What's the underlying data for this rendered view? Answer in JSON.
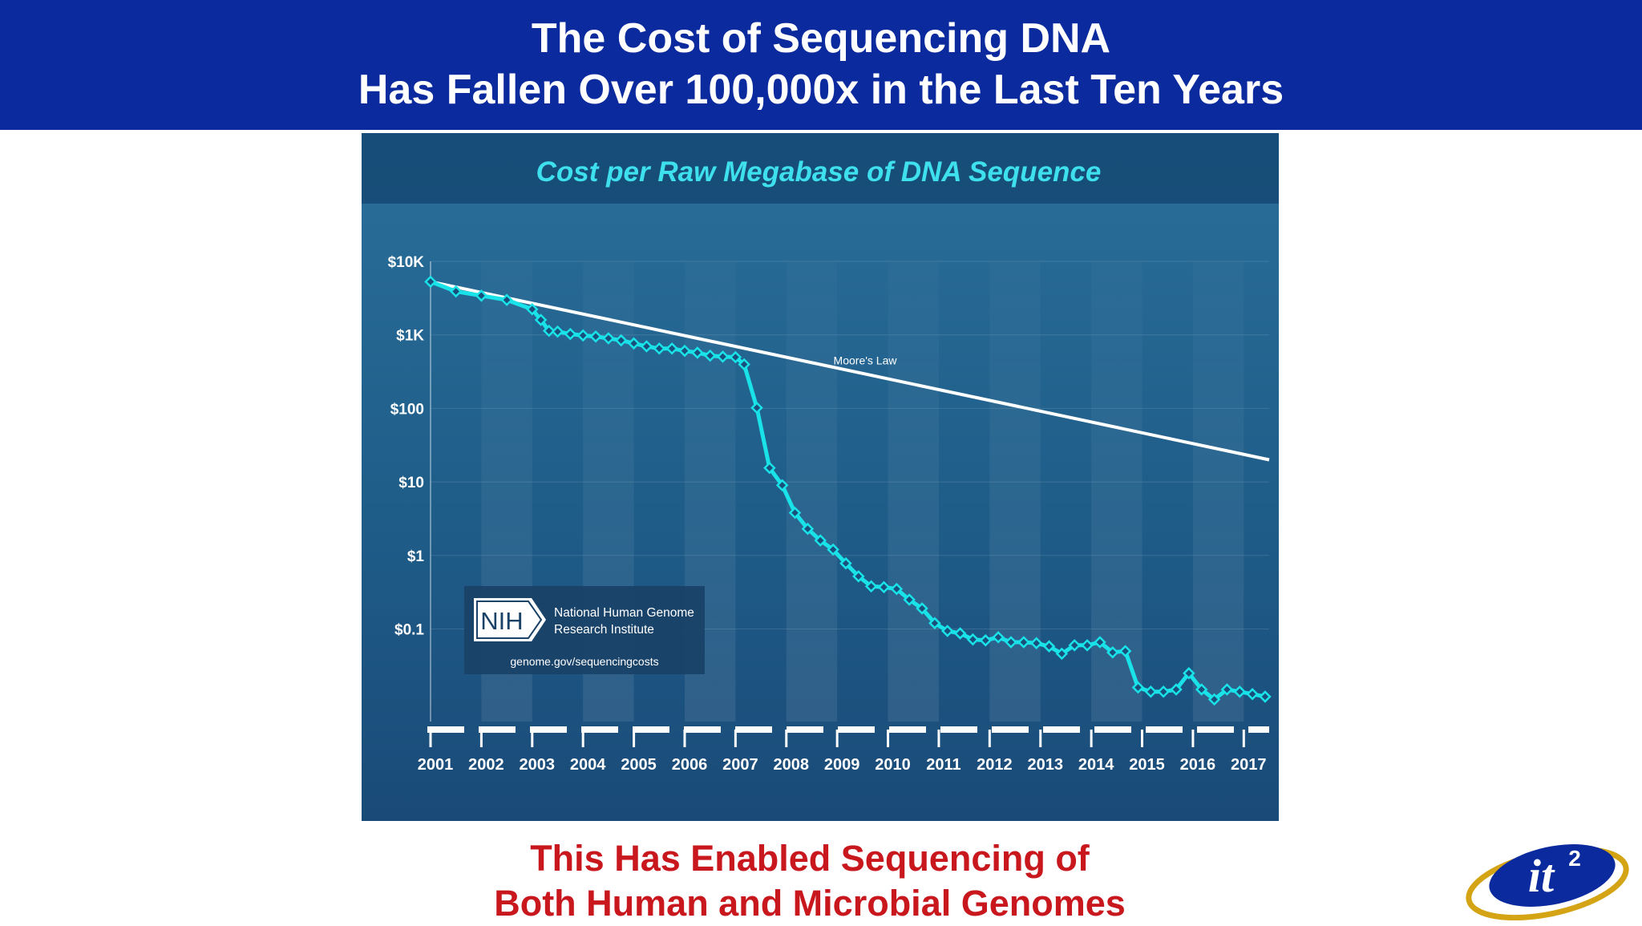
{
  "header": {
    "title_line1": "The Cost of Sequencing DNA",
    "title_line2": "Has Fallen Over 100,000x in the Last Ten Years"
  },
  "footer": {
    "line1": "This Has Enabled Sequencing of",
    "line2": "Both Human and Microbial Genomes"
  },
  "logo": {
    "text": "it",
    "superscript": "2"
  },
  "nih_badge": {
    "acronym": "NIH",
    "name_line1": "National Human Genome",
    "name_line2": "Research Institute",
    "url": "genome.gov/sequencingcosts"
  },
  "colors": {
    "header_bg": "#0b2a9e",
    "footer_text": "#c8171d",
    "chart_bg": "#1e5a86",
    "series_color": "#19e3e8",
    "moores_law_color": "#ffffff",
    "title_color": "#3ee0ee"
  },
  "chart_data": {
    "type": "line",
    "title": "Cost per Raw Megabase of DNA Sequence",
    "scale": "log",
    "yticks": [
      {
        "value": 10000,
        "label": "$10K"
      },
      {
        "value": 1000,
        "label": "$1K"
      },
      {
        "value": 100,
        "label": "$100"
      },
      {
        "value": 10,
        "label": "$10"
      },
      {
        "value": 1,
        "label": "$1"
      },
      {
        "value": 0.1,
        "label": "$0.1"
      }
    ],
    "ylim": [
      0.0055,
      10000
    ],
    "xlim": [
      2001.75,
      2018.25
    ],
    "xticks": [
      "2001",
      "2002",
      "2003",
      "2004",
      "2005",
      "2006",
      "2007",
      "2008",
      "2009",
      "2010",
      "2011",
      "2012",
      "2013",
      "2014",
      "2015",
      "2016",
      "2017"
    ],
    "grid": true,
    "series": [
      {
        "name": "",
        "x": [
          2001.75,
          2002.25,
          2002.75,
          2003.25,
          2003.75,
          2003.92,
          2004.08,
          2004.25,
          2004.5,
          2004.75,
          2005.0,
          2005.25,
          2005.5,
          2005.75,
          2006.0,
          2006.25,
          2006.5,
          2006.75,
          2007.0,
          2007.25,
          2007.5,
          2007.75,
          2007.92,
          2008.17,
          2008.42,
          2008.67,
          2008.92,
          2009.17,
          2009.42,
          2009.67,
          2009.92,
          2010.17,
          2010.42,
          2010.67,
          2010.92,
          2011.17,
          2011.42,
          2011.67,
          2011.92,
          2012.17,
          2012.42,
          2012.67,
          2012.92,
          2013.17,
          2013.42,
          2013.67,
          2013.92,
          2014.17,
          2014.42,
          2014.67,
          2014.92,
          2015.17,
          2015.42,
          2015.67,
          2015.92,
          2016.17,
          2016.42,
          2016.67,
          2016.92,
          2017.17,
          2017.42,
          2017.67,
          2017.92,
          2018.17
        ],
        "values": [
          5292,
          3898,
          3414,
          2987,
          2230,
          1598,
          1135,
          1107,
          1028,
          982,
          949,
          898,
          842,
          766,
          698,
          651,
          651,
          607,
          572,
          522,
          505,
          498,
          397,
          102,
          15.5,
          9.0,
          3.8,
          2.3,
          1.6,
          1.2,
          0.78,
          0.52,
          0.38,
          0.37,
          0.35,
          0.25,
          0.19,
          0.12,
          0.094,
          0.087,
          0.072,
          0.07,
          0.077,
          0.066,
          0.066,
          0.064,
          0.058,
          0.046,
          0.06,
          0.06,
          0.066,
          0.048,
          0.05,
          0.016,
          0.014,
          0.014,
          0.015,
          0.025,
          0.015,
          0.011,
          0.015,
          0.014,
          0.013,
          0.012
        ]
      },
      {
        "name": "Moore's Law",
        "x": [
          2001.75,
          2018.25
        ],
        "values": [
          5292,
          20
        ]
      }
    ]
  }
}
